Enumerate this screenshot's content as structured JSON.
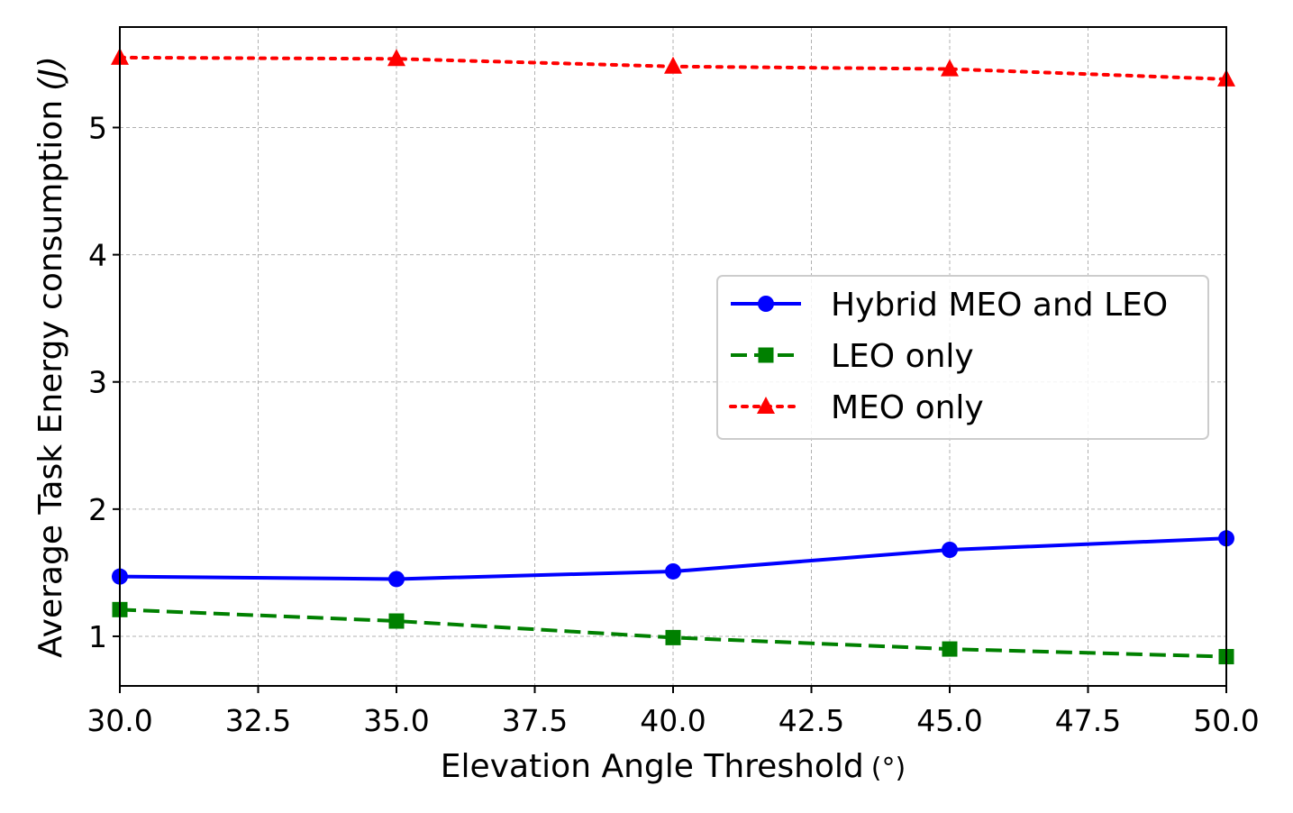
{
  "chart_data": {
    "type": "line",
    "title": "",
    "xlabel": "Elevation Angle Threshold",
    "xlabel_unit": "(°)",
    "ylabel": "Average Task Energy consumption",
    "ylabel_unit": "(J)",
    "xlim": [
      30.0,
      50.0
    ],
    "ylim": [
      0.61,
      5.79
    ],
    "x_ticks": [
      "30.0",
      "32.5",
      "35.0",
      "37.5",
      "40.0",
      "42.5",
      "45.0",
      "47.5",
      "50.0"
    ],
    "y_ticks": [
      "1",
      "2",
      "3",
      "4",
      "5"
    ],
    "grid": true,
    "legend_position": "center-right",
    "x": [
      30,
      35,
      40,
      45,
      50
    ],
    "series": [
      {
        "name": "Hybrid MEO and LEO",
        "color": "#0000ff",
        "linestyle": "solid",
        "marker": "circle",
        "values": [
          1.47,
          1.45,
          1.51,
          1.68,
          1.77
        ]
      },
      {
        "name": "LEO only",
        "color": "#008000",
        "linestyle": "dashed",
        "marker": "square",
        "values": [
          1.21,
          1.12,
          0.99,
          0.9,
          0.84
        ]
      },
      {
        "name": "MEO only",
        "color": "#ff0000",
        "linestyle": "dotted",
        "marker": "triangle",
        "values": [
          5.55,
          5.54,
          5.48,
          5.46,
          5.38
        ]
      }
    ]
  }
}
